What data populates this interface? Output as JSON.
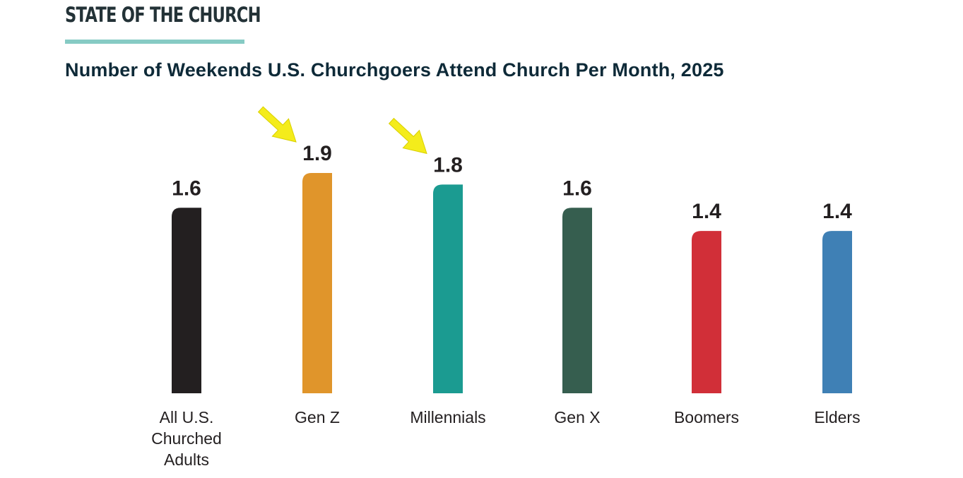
{
  "header": {
    "section": "STATE OF THE CHURCH",
    "title": "Number of Weekends U.S. Churchgoers Attend Church Per Month, 2025"
  },
  "colors": {
    "rule": "#86cbc4",
    "arrow": "#f4ec1b"
  },
  "chart_data": {
    "type": "bar",
    "title": "Number of Weekends U.S. Churchgoers Attend Church Per Month, 2025",
    "xlabel": "",
    "ylabel": "",
    "ylim": [
      0,
      1.9
    ],
    "grid": false,
    "categories": [
      [
        "All U.S.",
        "Churched",
        "Adults"
      ],
      [
        "Gen Z"
      ],
      [
        "Millennials"
      ],
      [
        "Gen X"
      ],
      [
        "Boomers"
      ],
      [
        "Elders"
      ]
    ],
    "values": [
      1.6,
      1.9,
      1.8,
      1.6,
      1.4,
      1.4
    ],
    "value_labels": [
      "1.6",
      "1.9",
      "1.8",
      "1.6",
      "1.4",
      "1.4"
    ],
    "bar_colors": [
      "#231f20",
      "#e0952b",
      "#1b9b91",
      "#365e4f",
      "#d12f38",
      "#3f80b5"
    ],
    "annotations": [
      {
        "type": "arrow",
        "target": "Gen Z"
      },
      {
        "type": "arrow",
        "target": "Millennials"
      }
    ]
  }
}
